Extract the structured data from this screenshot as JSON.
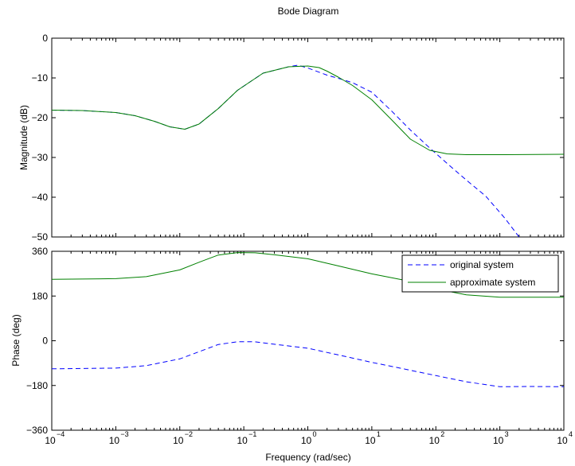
{
  "chart_data": {
    "type": "line",
    "title": "Bode Diagram",
    "xlabel": "Frequency  (rad/sec)",
    "x_scale": "log",
    "xlim": [
      0.0001,
      10000
    ],
    "x_tick_labels": [
      {
        "base": "10",
        "exp": "−4"
      },
      {
        "base": "10",
        "exp": "−3"
      },
      {
        "base": "10",
        "exp": "−2"
      },
      {
        "base": "10",
        "exp": "−1"
      },
      {
        "base": "10",
        "exp": "0"
      },
      {
        "base": "10",
        "exp": "1"
      },
      {
        "base": "10",
        "exp": "2"
      },
      {
        "base": "10",
        "exp": "3"
      },
      {
        "base": "10",
        "exp": "4"
      }
    ],
    "legend": {
      "placement": "top-right",
      "entries": [
        "original system",
        "approximate system"
      ]
    },
    "colors": {
      "original": "#0000ff",
      "approximate": "#008000"
    },
    "magnitude": {
      "ylabel": "Magnitude (dB)",
      "ylim": [
        -50,
        0
      ],
      "yticks": [
        "0",
        "−10",
        "−20",
        "−30",
        "−40",
        "−50"
      ],
      "series": [
        {
          "style": "dashed",
          "x": [
            0.0001,
            0.0003,
            0.001,
            0.002,
            0.004,
            0.007,
            0.012,
            0.02,
            0.04,
            0.08,
            0.2,
            0.5,
            0.7,
            1,
            2,
            3,
            5,
            10,
            20,
            40,
            80,
            150,
            300,
            600,
            1200,
            2000
          ],
          "y": [
            -18.1,
            -18.2,
            -18.7,
            -19.5,
            -20.9,
            -22.3,
            -22.9,
            -21.6,
            -17.7,
            -13.1,
            -8.8,
            -7.2,
            -6.8,
            -7.5,
            -9.3,
            -10.1,
            -11.2,
            -13.6,
            -18.2,
            -23.1,
            -27.6,
            -31.5,
            -35.7,
            -39.7,
            -45.3,
            -50
          ]
        },
        {
          "style": "solid",
          "x": [
            0.0001,
            0.0003,
            0.001,
            0.002,
            0.004,
            0.007,
            0.012,
            0.02,
            0.04,
            0.08,
            0.2,
            0.5,
            1,
            1.5,
            2,
            3,
            5,
            10,
            20,
            40,
            80,
            150,
            300,
            1000,
            10000
          ],
          "y": [
            -18.1,
            -18.2,
            -18.7,
            -19.5,
            -20.9,
            -22.3,
            -22.9,
            -21.6,
            -17.7,
            -13.1,
            -8.8,
            -7.2,
            -7.0,
            -7.4,
            -8.3,
            -9.8,
            -11.9,
            -15.5,
            -20.4,
            -25.4,
            -28.2,
            -29.1,
            -29.3,
            -29.3,
            -29.2
          ]
        }
      ]
    },
    "phase": {
      "ylabel": "Phase (deg)",
      "ylim": [
        -360,
        360
      ],
      "yticks": [
        "360",
        "180",
        "0",
        "−180",
        "−360"
      ],
      "series": [
        {
          "style": "dashed",
          "x": [
            0.0001,
            0.001,
            0.003,
            0.01,
            0.02,
            0.04,
            0.08,
            0.15,
            0.3,
            1,
            3,
            10,
            30,
            100,
            300,
            1000,
            3000,
            10000
          ],
          "y": [
            -113,
            -110,
            -100,
            -73,
            -44,
            -15,
            -4,
            -4,
            -14,
            -30,
            -57,
            -87,
            -112,
            -140,
            -165,
            -185,
            -184,
            -185
          ]
        },
        {
          "style": "solid",
          "x": [
            0.0001,
            0.001,
            0.003,
            0.01,
            0.02,
            0.04,
            0.08,
            0.15,
            0.3,
            1,
            3,
            10,
            30,
            100,
            300,
            1000,
            3000,
            10000
          ],
          "y": [
            247,
            250,
            258,
            285,
            316,
            345,
            355,
            354,
            346,
            330,
            301,
            269,
            245,
            209,
            185,
            175,
            175,
            175
          ]
        }
      ]
    }
  }
}
